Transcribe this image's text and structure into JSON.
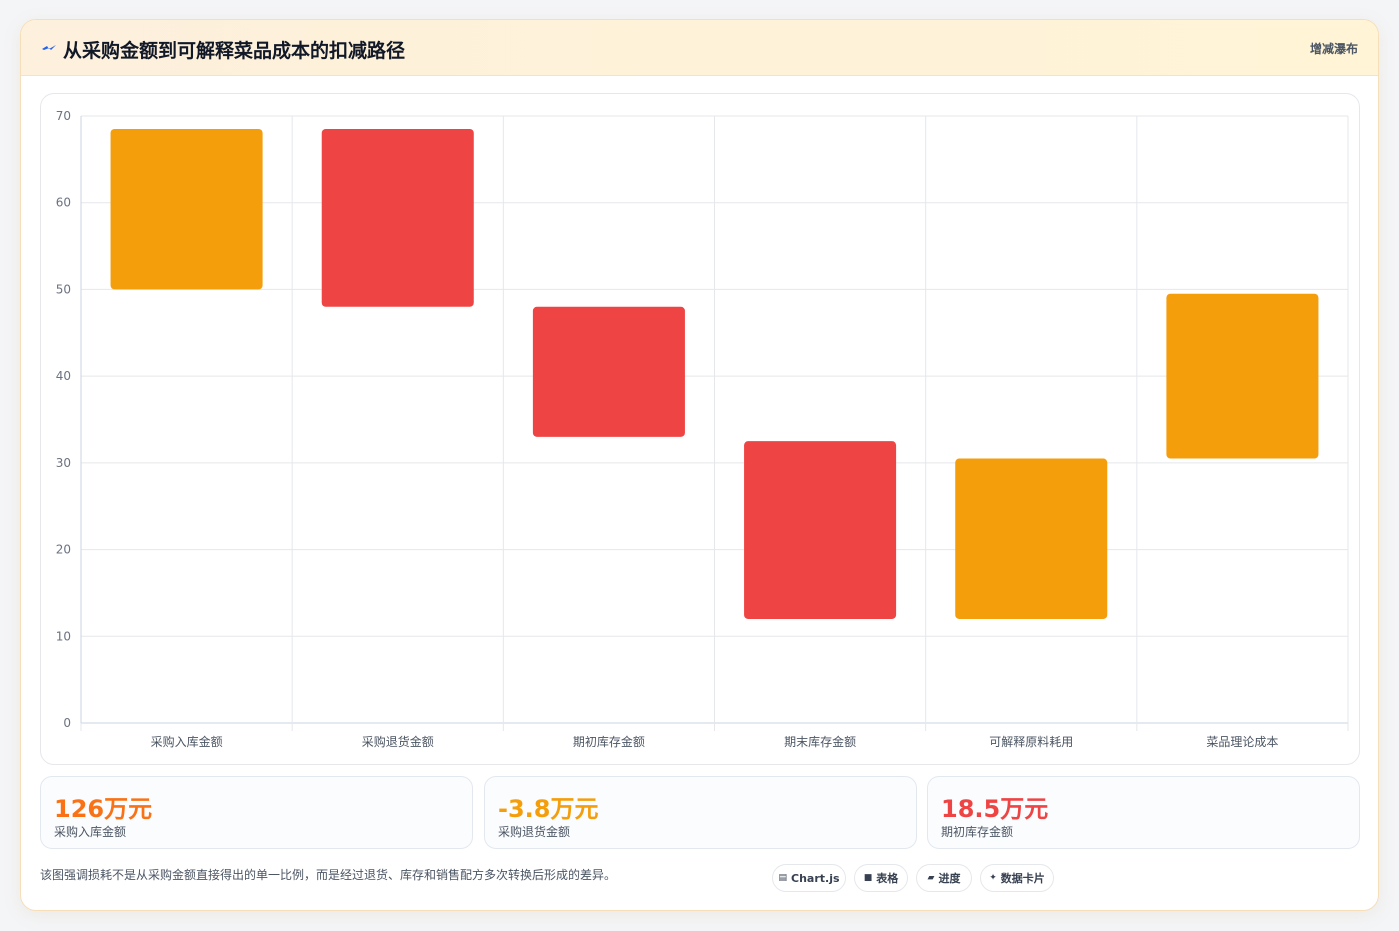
{
  "header": {
    "title": "从采购金额到可解释菜品成本的扣减路径",
    "badge": "增减瀑布",
    "icon": "lightning-icon",
    "icon_color": "#2563eb"
  },
  "colors": {
    "increase": "#f59e0b",
    "decrease": "#ef4444",
    "grid": "#e5e7eb",
    "tick": "#6b7280",
    "category_label": "#4b5563",
    "stat_orange": "#f97316",
    "stat_amber": "#f59e0b",
    "stat_red": "#ef4444"
  },
  "chart_data": {
    "type": "bar",
    "subtype": "floating-bar-waterfall",
    "categories": [
      "采购入库金额",
      "采购退货金额",
      "期初库存金额",
      "期末库存金额",
      "可解释原料耗用",
      "菜品理论成本"
    ],
    "ranges": [
      [
        50,
        68.5
      ],
      [
        48,
        68.5
      ],
      [
        33,
        48
      ],
      [
        12,
        32.5
      ],
      [
        12,
        30.5
      ],
      [
        30.5,
        49.5
      ]
    ],
    "kinds": [
      "increase",
      "decrease",
      "decrease",
      "decrease",
      "increase",
      "increase"
    ],
    "ylim": [
      0,
      70
    ],
    "yticks": [
      0,
      10,
      20,
      30,
      40,
      50,
      60,
      70
    ],
    "grid": true,
    "legend": "none",
    "title": "",
    "xlabel": "",
    "ylabel": ""
  },
  "stats": [
    {
      "value": "126万元",
      "label": "采购入库金额",
      "color": "#f97316"
    },
    {
      "value": "-3.8万元",
      "label": "采购退货金额",
      "color": "#f59e0b"
    },
    {
      "value": "18.5万元",
      "label": "期初库存金额",
      "color": "#ef4444"
    }
  ],
  "note": "该图强调损耗不是从采购金额直接得出的单一比例，而是经过退货、库存和销售配方多次转换后形成的差异。",
  "chips": [
    {
      "icon": "chart-icon",
      "glyph": "▤",
      "label": "Chart.js"
    },
    {
      "icon": "table-icon",
      "glyph": "■",
      "label": "表格"
    },
    {
      "icon": "progress-icon",
      "glyph": "▰",
      "label": "进度"
    },
    {
      "icon": "card-icon",
      "glyph": "✦",
      "label": "数据卡片"
    }
  ]
}
